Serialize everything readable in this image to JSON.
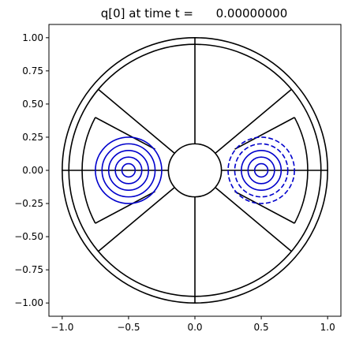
{
  "chart_data": {
    "type": "contour",
    "title": "q[0] at time t =      0.00000000",
    "xlabel": "",
    "ylabel": "",
    "xlim": [
      -1.1,
      1.1
    ],
    "ylim": [
      -1.1,
      1.1
    ],
    "grid": false,
    "legend": "none",
    "x_ticks": [
      -1.0,
      -0.5,
      0.0,
      0.5,
      1.0
    ],
    "x_tick_labels": [
      "−1.0",
      "−0.5",
      "0.0",
      "0.5",
      "1.0"
    ],
    "y_ticks": [
      1.0,
      0.75,
      0.5,
      0.25,
      0.0,
      -0.25,
      -0.5,
      -0.75,
      -1.0
    ],
    "y_tick_labels": [
      "1.00",
      "0.75",
      "0.50",
      "0.25",
      "0.00",
      "−0.25",
      "−0.50",
      "−0.75",
      "−1.00"
    ],
    "mesh_color": "#000000",
    "contour_color": "#0000cc",
    "mesh": {
      "outer_radius": 1.0,
      "inner_radius": 0.2,
      "ring_radius": 0.95,
      "wedge_outer_radius": 0.85,
      "wedge_inner_radius": 0.4,
      "wedge_half_angle_deg": 40,
      "spokes_deg": [
        0,
        90,
        180,
        270
      ]
    },
    "contours": [
      {
        "center": [
          -0.5,
          0.0
        ],
        "radii": [
          0.05,
          0.1,
          0.15,
          0.2,
          0.25
        ],
        "style": "solid"
      },
      {
        "center": [
          0.5,
          0.0
        ],
        "radii": [
          0.05,
          0.1,
          0.15
        ],
        "style": "solid"
      },
      {
        "center": [
          0.5,
          0.0
        ],
        "radii": [
          0.2,
          0.25
        ],
        "style": "dashed"
      }
    ]
  }
}
